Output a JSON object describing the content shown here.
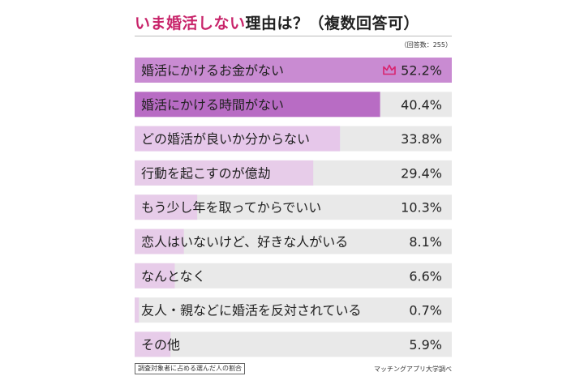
{
  "header": {
    "title_accent": "いま婚活しない",
    "title_rest": "理由は？（複数回答可）",
    "respondents": "（回答数：255）"
  },
  "footer": {
    "note": "調査対象者に占める選んだ人の割合",
    "source": "マッチングアプリ大学調べ"
  },
  "colors": {
    "top1": "#c98bd2",
    "top2": "#b86cc4",
    "top3": "#e6c7ea",
    "rest": "#e7cce9",
    "track": "#e9e9e9",
    "crown": "#d8246e"
  },
  "chart_data": {
    "type": "bar",
    "orientation": "horizontal",
    "categories": [
      "婚活にかけるお金がない",
      "婚活にかける時間がない",
      "どの婚活が良いか分からない",
      "行動を起こすのが億劫",
      "もう少し年を取ってからでいい",
      "恋人はいないけど、好きな人がいる",
      "なんとなく",
      "友人・親などに婚活を反対されている",
      "その他"
    ],
    "values": [
      52.2,
      40.4,
      33.8,
      29.4,
      10.3,
      8.1,
      6.6,
      0.7,
      5.9
    ],
    "value_labels": [
      "52.2%",
      "40.4%",
      "33.8%",
      "29.4%",
      "10.3%",
      "8.1%",
      "6.6%",
      "0.7%",
      "5.9%"
    ],
    "xlim": [
      0,
      52.2
    ],
    "title": "いま婚活しない理由は？（複数回答可）"
  }
}
